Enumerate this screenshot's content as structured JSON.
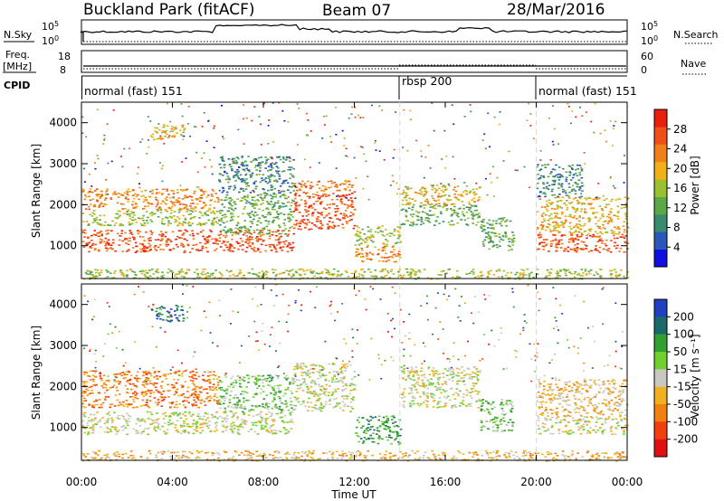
{
  "header": {
    "station": "Buckland Park (fitACF)",
    "beam": "Beam 07",
    "date": "28/Mar/2016"
  },
  "params_panel": {
    "nsky_label": "N.Sky",
    "nsearch_label": "N.Search",
    "nsky_top": "10^5",
    "nsky_bottom": "10^0",
    "nsearch_top": "10^5",
    "nsearch_bottom": "10^0",
    "freq_label": "Freq.",
    "freq_unit": "[MHz]",
    "freq_top": "18",
    "freq_bottom": "8",
    "nave_label": "Nave",
    "nave_top": "60",
    "nave_bottom": "0",
    "cpid_label": "CPID",
    "cpid_segments": [
      {
        "name": "normal (fast) 151",
        "start_h": 0,
        "end_h": 14
      },
      {
        "name": "rbsp 200",
        "start_h": 14,
        "end_h": 20
      },
      {
        "name": "normal (fast) 151",
        "start_h": 20,
        "end_h": 24
      }
    ]
  },
  "palettes": {
    "power": [
      "#1010e0",
      "#2a58b8",
      "#3a8a70",
      "#5aa848",
      "#9ac030",
      "#f0b018",
      "#f08018",
      "#f05018",
      "#e82010"
    ],
    "velocity": [
      "#2040c0",
      "#1a6a6a",
      "#30a030",
      "#70d030",
      "#c8c8c0",
      "#f0b020",
      "#f08010",
      "#f04010",
      "#e01010"
    ]
  },
  "chart_data": [
    {
      "type": "heatmap",
      "name": "power",
      "xlabel": "Time UT",
      "ylabel": "Slant Range [km]",
      "xlim": [
        0,
        24
      ],
      "ylim": [
        200,
        4500
      ],
      "x_ticks": [
        0,
        4,
        8,
        12,
        16,
        20,
        24
      ],
      "x_tick_labels": [
        "00:00",
        "04:00",
        "08:00",
        "12:00",
        "16:00",
        "20:00",
        "00:00"
      ],
      "y_ticks": [
        1000,
        2000,
        3000,
        4000
      ],
      "y_tick_labels": [
        "1000",
        "2000",
        "3000",
        "4000"
      ],
      "colorbar": {
        "label": "Power [dB]",
        "ticks": [
          4,
          8,
          12,
          16,
          20,
          24,
          28
        ],
        "tick_labels": [
          "4",
          "8",
          "12",
          "16",
          "20",
          "24",
          "28"
        ],
        "range": [
          0,
          32
        ]
      },
      "bands": [
        {
          "t0": 0.0,
          "t1": 9.3,
          "r0": 850,
          "r1": 1400,
          "value": 27
        },
        {
          "t0": 0.0,
          "t1": 6.0,
          "r0": 1900,
          "r1": 2400,
          "value": 22
        },
        {
          "t0": 0.0,
          "t1": 6.0,
          "r0": 1500,
          "r1": 1900,
          "value": 17
        },
        {
          "t0": 6.0,
          "t1": 9.3,
          "r0": 1300,
          "r1": 2300,
          "value": 13
        },
        {
          "t0": 6.0,
          "t1": 9.3,
          "r0": 2300,
          "r1": 3200,
          "value": 8
        },
        {
          "t0": 9.3,
          "t1": 12.0,
          "r0": 1400,
          "r1": 2300,
          "value": 26
        },
        {
          "t0": 9.3,
          "t1": 12.0,
          "r0": 2300,
          "r1": 2600,
          "value": 23
        },
        {
          "t0": 12.0,
          "t1": 14.0,
          "r0": 600,
          "r1": 1000,
          "value": 22
        },
        {
          "t0": 12.0,
          "t1": 14.0,
          "r0": 1000,
          "r1": 1500,
          "value": 17
        },
        {
          "t0": 14.0,
          "t1": 17.5,
          "r0": 2000,
          "r1": 2500,
          "value": 20
        },
        {
          "t0": 14.0,
          "t1": 17.5,
          "r0": 1500,
          "r1": 2000,
          "value": 12
        },
        {
          "t0": 17.5,
          "t1": 19.0,
          "r0": 900,
          "r1": 1700,
          "value": 10
        },
        {
          "t0": 20.0,
          "t1": 24.0,
          "r0": 850,
          "r1": 1300,
          "value": 27
        },
        {
          "t0": 20.0,
          "t1": 24.0,
          "r0": 1300,
          "r1": 2200,
          "value": 18
        },
        {
          "t0": 20.0,
          "t1": 22.0,
          "r0": 2200,
          "r1": 3000,
          "value": 7
        },
        {
          "t0": 0.0,
          "t1": 24.0,
          "r0": 200,
          "r1": 450,
          "value": 14
        },
        {
          "t0": 3.0,
          "t1": 4.5,
          "r0": 3600,
          "r1": 4000,
          "value": 21
        }
      ]
    },
    {
      "type": "heatmap",
      "name": "velocity",
      "xlabel": "Time UT",
      "ylabel": "Slant Range [km]",
      "xlim": [
        0,
        24
      ],
      "ylim": [
        200,
        4500
      ],
      "x_ticks": [
        0,
        4,
        8,
        12,
        16,
        20,
        24
      ],
      "x_tick_labels": [
        "00:00",
        "04:00",
        "08:00",
        "12:00",
        "16:00",
        "20:00",
        "00:00"
      ],
      "y_ticks": [
        1000,
        2000,
        3000,
        4000
      ],
      "y_tick_labels": [
        "1000",
        "2000",
        "3000",
        "4000"
      ],
      "colorbar": {
        "label": "Velocity [m s⁻¹]",
        "ticks": [
          200,
          100,
          50,
          15,
          -15,
          -50,
          -100,
          -200
        ],
        "tick_labels": [
          "200",
          "100",
          "50",
          "15",
          "-15",
          "-50",
          "-100",
          "-200"
        ]
      },
      "bands": [
        {
          "t0": 0.0,
          "t1": 9.3,
          "r0": 850,
          "r1": 1400,
          "value": 0
        },
        {
          "t0": 0.0,
          "t1": 6.0,
          "r0": 1500,
          "r1": 2400,
          "value": -60
        },
        {
          "t0": 6.0,
          "t1": 9.3,
          "r0": 1400,
          "r1": 2300,
          "value": 20
        },
        {
          "t0": 9.3,
          "t1": 12.0,
          "r0": 1400,
          "r1": 2600,
          "value": 0
        },
        {
          "t0": 12.0,
          "t1": 14.0,
          "r0": 600,
          "r1": 1300,
          "value": 70
        },
        {
          "t0": 14.0,
          "t1": 17.5,
          "r0": 1500,
          "r1": 2500,
          "value": 0
        },
        {
          "t0": 17.5,
          "t1": 19.0,
          "r0": 900,
          "r1": 1700,
          "value": 40
        },
        {
          "t0": 20.0,
          "t1": 24.0,
          "r0": 850,
          "r1": 1300,
          "value": 0
        },
        {
          "t0": 20.0,
          "t1": 24.0,
          "r0": 1300,
          "r1": 2200,
          "value": -40
        },
        {
          "t0": 0.0,
          "t1": 24.0,
          "r0": 200,
          "r1": 450,
          "value": -30
        },
        {
          "t0": 3.0,
          "t1": 4.5,
          "r0": 3600,
          "r1": 4000,
          "value": 120
        }
      ]
    }
  ]
}
